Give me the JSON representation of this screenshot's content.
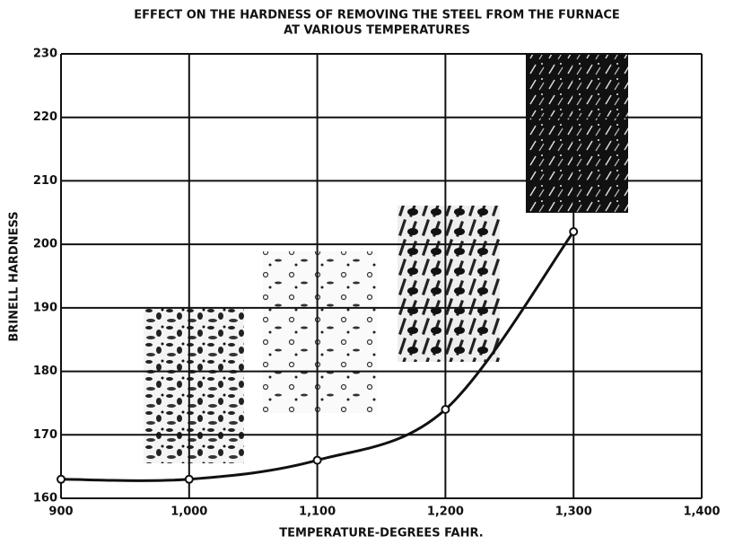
{
  "chart_data": {
    "type": "line",
    "title": [
      "EFFECT ON THE HARDNESS OF REMOVING THE STEEL FROM THE FURNACE",
      "AT VARIOUS TEMPERATURES"
    ],
    "x_label": "TEMPERATURE-DEGREES FAHR.",
    "y_label": "BRINELL HARDNESS",
    "x": [
      900,
      1000,
      1100,
      1200,
      1300
    ],
    "series": [
      {
        "color": "#111111",
        "values": [
          163,
          163,
          166,
          174,
          202
        ]
      }
    ],
    "xlim": [
      900,
      1400
    ],
    "xticks": [
      900,
      {
        "value": 1000,
        "label": "1,000"
      },
      {
        "value": 1100,
        "label": "1,100"
      },
      {
        "value": 1200,
        "label": "1,200"
      },
      {
        "value": 1300,
        "label": "1,300"
      },
      {
        "value": 1400,
        "label": "1,400"
      }
    ],
    "ylim": [
      160,
      230
    ],
    "yticks": [
      160,
      170,
      180,
      190,
      200,
      210,
      220,
      230
    ],
    "grid": true
  }
}
